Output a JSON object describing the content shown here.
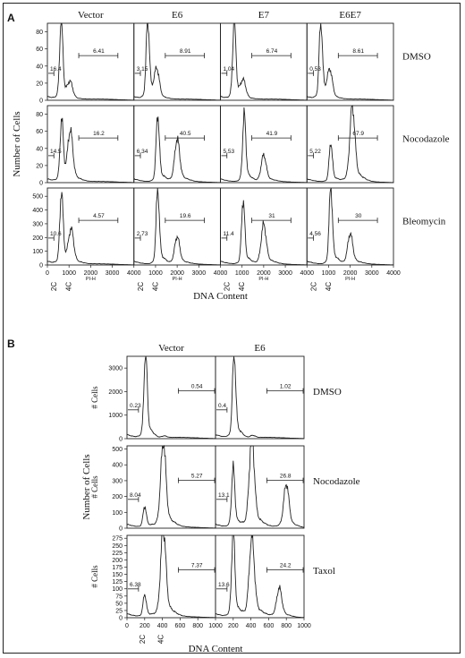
{
  "panel_a": {
    "panel_label": "A",
    "samples": [
      "Vector",
      "E6",
      "E7",
      "E6E7"
    ],
    "treatments": [
      "DMSO",
      "Nocodazole",
      "Bleomycin"
    ],
    "y_axis_label": "Number of Cells",
    "x_axis_label": "DNA Content",
    "x_tick_labels": [
      "0",
      "1000",
      "2000",
      "3000",
      "4000"
    ],
    "x_sub_label": "PI-H",
    "ploidy_markers": [
      "2C",
      "4C"
    ],
    "row_y_ticks": [
      [
        "0",
        "20",
        "40",
        "60",
        "80"
      ],
      [
        "0",
        "20",
        "40",
        "60",
        "80"
      ],
      [
        "0",
        "100",
        "200",
        "300",
        "400",
        "500"
      ]
    ]
  },
  "panel_b": {
    "panel_label": "B",
    "samples": [
      "Vector",
      "E6"
    ],
    "treatments": [
      "DMSO",
      "Nocodazole",
      "Taxol"
    ],
    "y_axis_label": "Number of Cells",
    "cells_label": "# Cells",
    "x_axis_label": "DNA Content",
    "x_tick_labels": [
      "0",
      "200",
      "400",
      "600",
      "800",
      "1000"
    ],
    "ploidy_markers": [
      "2C",
      "4C"
    ],
    "row_y_ticks": [
      [
        "0",
        "1000",
        "2000",
        "3000"
      ],
      [
        "0",
        "100",
        "200",
        "300",
        "400",
        "500"
      ],
      [
        "0",
        "25",
        "50",
        "75",
        "100",
        "125",
        "150",
        "175",
        "200",
        "225",
        "250",
        "275"
      ]
    ]
  },
  "chart_data": [
    {
      "type": "area",
      "title": "",
      "panel": "A",
      "xlabel": "DNA Content (PI-H)",
      "ylabel": "Number of Cells",
      "xlim": [
        0,
        4000
      ],
      "rows": [
        "DMSO",
        "Nocodazole",
        "Bleomycin"
      ],
      "columns": [
        "Vector",
        "E6",
        "E7",
        "E6E7"
      ],
      "ylim": [
        [
          0,
          90
        ],
        [
          0,
          90
        ],
        [
          0,
          560
        ]
      ],
      "gates": {
        "sub_g1": [
          0,
          300
        ],
        "polyploid": [
          1450,
          3300
        ]
      },
      "cells": [
        [
          {
            "sub_g1": "16.4",
            "polyploid": "6.41",
            "peaks": [
              [
                640,
                85
              ],
              [
                1060,
                16
              ]
            ]
          },
          {
            "sub_g1": "3.15",
            "polyploid": "8.91",
            "peaks": [
              [
                640,
                85
              ],
              [
                1060,
                30
              ]
            ]
          },
          {
            "sub_g1": "1.04",
            "polyploid": "6.74",
            "peaks": [
              [
                640,
                83
              ],
              [
                1060,
                18
              ]
            ]
          },
          {
            "sub_g1": "0.53",
            "polyploid": "8.61",
            "peaks": [
              [
                640,
                83
              ],
              [
                1060,
                29
              ]
            ]
          }
        ],
        [
          {
            "sub_g1": "14.5",
            "polyploid": "16.2",
            "peaks": [
              [
                660,
                65
              ],
              [
                1060,
                52
              ]
            ]
          },
          {
            "sub_g1": "6.34",
            "polyploid": "40.5",
            "peaks": [
              [
                1100,
                72
              ],
              [
                2000,
                45
              ]
            ]
          },
          {
            "sub_g1": "5.53",
            "polyploid": "41.9",
            "peaks": [
              [
                1100,
                72
              ],
              [
                2000,
                28
              ]
            ]
          },
          {
            "sub_g1": "5.22",
            "polyploid": "67.9",
            "peaks": [
              [
                1100,
                42
              ],
              [
                2100,
                80
              ]
            ]
          }
        ],
        [
          {
            "sub_g1": "10.6",
            "polyploid": "4.57",
            "peaks": [
              [
                650,
                480
              ],
              [
                1100,
                220
              ]
            ]
          },
          {
            "sub_g1": "2.73",
            "polyploid": "19.6",
            "peaks": [
              [
                1100,
                500
              ],
              [
                2000,
                180
              ]
            ]
          },
          {
            "sub_g1": "11.4",
            "polyploid": "31",
            "peaks": [
              [
                1050,
                430
              ],
              [
                2000,
                260
              ]
            ]
          },
          {
            "sub_g1": "4.56",
            "polyploid": "30",
            "peaks": [
              [
                1100,
                520
              ],
              [
                2000,
                200
              ]
            ]
          }
        ]
      ]
    },
    {
      "type": "area",
      "title": "",
      "panel": "B",
      "xlabel": "DNA Content",
      "ylabel": "# Cells",
      "xlim": [
        0,
        1000
      ],
      "rows": [
        "DMSO",
        "Nocodazole",
        "Taxol"
      ],
      "columns": [
        "Vector",
        "E6"
      ],
      "ylim": [
        [
          0,
          3500
        ],
        [
          0,
          520
        ],
        [
          0,
          285
        ]
      ],
      "gates": {
        "sub_g1": [
          0,
          130
        ],
        "polyploid": [
          580,
          1000
        ]
      },
      "cells": [
        [
          {
            "sub_g1": "0.23",
            "polyploid": "0.54",
            "peaks": [
              [
                210,
                3350
              ],
              [
                420,
                70
              ]
            ]
          },
          {
            "sub_g1": "0.4",
            "polyploid": "1.02",
            "peaks": [
              [
                210,
                3300
              ],
              [
                420,
                90
              ]
            ]
          }
        ],
        [
          {
            "sub_g1": "8.04",
            "polyploid": "5.27",
            "peaks": [
              [
                200,
                120
              ],
              [
                410,
                490
              ]
            ]
          },
          {
            "sub_g1": "13.1",
            "polyploid": "26.8",
            "peaks": [
              [
                200,
                340
              ],
              [
                410,
                520
              ],
              [
                800,
                250
              ]
            ]
          }
        ],
        [
          {
            "sub_g1": "6.38",
            "polyploid": "7.37",
            "peaks": [
              [
                200,
                70
              ],
              [
                410,
                280
              ]
            ]
          },
          {
            "sub_g1": "13.6",
            "polyploid": "24.2",
            "peaks": [
              [
                200,
                270
              ],
              [
                410,
                250
              ],
              [
                720,
                90
              ]
            ]
          }
        ]
      ]
    }
  ]
}
